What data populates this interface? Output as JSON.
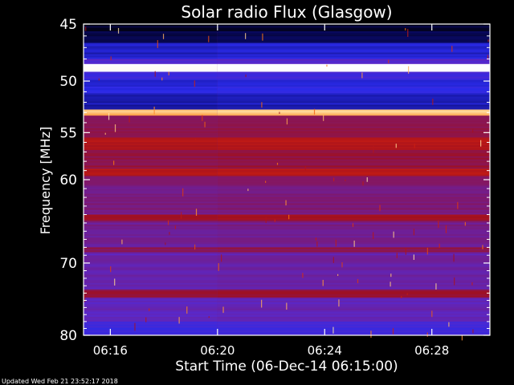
{
  "chart_data": {
    "type": "heatmap",
    "title": "Solar radio Flux (Glasgow)",
    "xlabel": "Start Time (06-Dec-14 06:15:00)",
    "ylabel": "Frequency [MHz]",
    "footer": "Updated Wed Feb 21 23:52:17 2018",
    "x_unit": "time (HH:MM, 06-Dec-14)",
    "xlim": [
      "06:15:00",
      "06:30:10"
    ],
    "ylim": [
      45,
      80
    ],
    "y_scale": "log",
    "x_ticks": [
      "06:16",
      "06:20",
      "06:24",
      "06:28"
    ],
    "y_ticks": [
      45,
      50,
      55,
      60,
      70,
      80
    ],
    "colormap": [
      "#000000",
      "#0a0a6e",
      "#2a2ae8",
      "#5a28c8",
      "#7a1a7a",
      "#a01020",
      "#d02010",
      "#ff7a10",
      "#ffe8b0",
      "#ffffff"
    ],
    "bands": [
      {
        "freq_from": 45.0,
        "freq_to": 45.6,
        "level": 0.05
      },
      {
        "freq_from": 45.6,
        "freq_to": 46.6,
        "level": 0.08
      },
      {
        "freq_from": 46.6,
        "freq_to": 48.0,
        "level": 0.2
      },
      {
        "freq_from": 48.0,
        "freq_to": 48.45,
        "level": 0.33
      },
      {
        "freq_from": 48.45,
        "freq_to": 49.15,
        "level": 0.99
      },
      {
        "freq_from": 49.15,
        "freq_to": 49.9,
        "level": 0.27
      },
      {
        "freq_from": 49.9,
        "freq_to": 51.3,
        "level": 0.22
      },
      {
        "freq_from": 51.3,
        "freq_to": 52.7,
        "level": 0.18
      },
      {
        "freq_from": 52.7,
        "freq_to": 53.3,
        "level": 0.85
      },
      {
        "freq_from": 53.3,
        "freq_to": 55.5,
        "level": 0.5
      },
      {
        "freq_from": 55.5,
        "freq_to": 56.8,
        "level": 0.6
      },
      {
        "freq_from": 56.8,
        "freq_to": 58.8,
        "level": 0.52
      },
      {
        "freq_from": 58.8,
        "freq_to": 59.6,
        "level": 0.62
      },
      {
        "freq_from": 59.6,
        "freq_to": 64.0,
        "level": 0.45
      },
      {
        "freq_from": 64.0,
        "freq_to": 64.8,
        "level": 0.55
      },
      {
        "freq_from": 64.8,
        "freq_to": 68.0,
        "level": 0.42
      },
      {
        "freq_from": 68.0,
        "freq_to": 68.6,
        "level": 0.5
      },
      {
        "freq_from": 68.6,
        "freq_to": 73.5,
        "level": 0.38
      },
      {
        "freq_from": 73.5,
        "freq_to": 74.6,
        "level": 0.52
      },
      {
        "freq_from": 74.6,
        "freq_to": 78.0,
        "level": 0.36
      },
      {
        "freq_from": 78.0,
        "freq_to": 80.0,
        "level": 0.28
      }
    ]
  }
}
